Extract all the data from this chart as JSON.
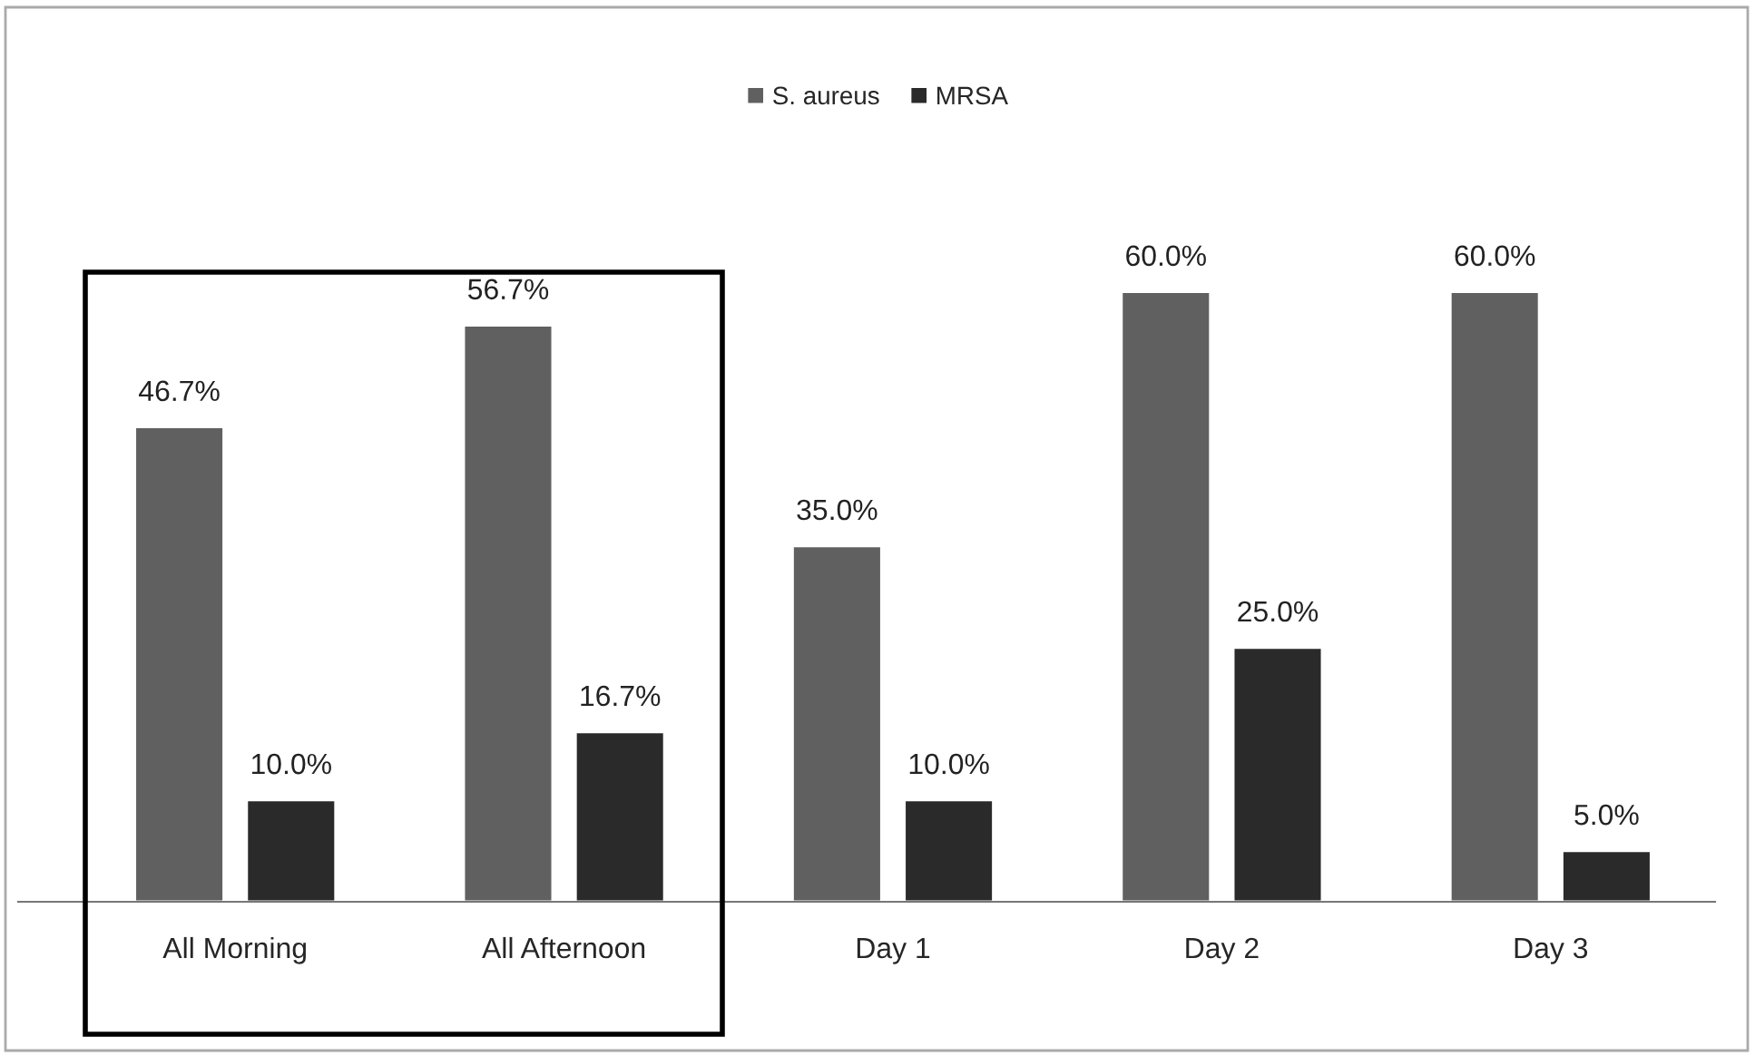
{
  "chart_data": {
    "type": "bar",
    "categories": [
      "All Morning",
      "All Afternoon",
      "Day 1",
      "Day 2",
      "Day 3"
    ],
    "series": [
      {
        "name": "S. aureus",
        "color": "#606060",
        "values": [
          46.7,
          56.7,
          35.0,
          60.0,
          60.0
        ],
        "value_labels": [
          "46.7%",
          "56.7%",
          "35.0%",
          "60.0%",
          "60.0%"
        ]
      },
      {
        "name": "MRSA",
        "color": "#2a2a2a",
        "values": [
          10.0,
          16.7,
          10.0,
          25.0,
          5.0
        ],
        "value_labels": [
          "10.0%",
          "16.7%",
          "10.0%",
          "25.0%",
          "5.0%"
        ]
      }
    ],
    "legend": "top",
    "grid": false
  }
}
